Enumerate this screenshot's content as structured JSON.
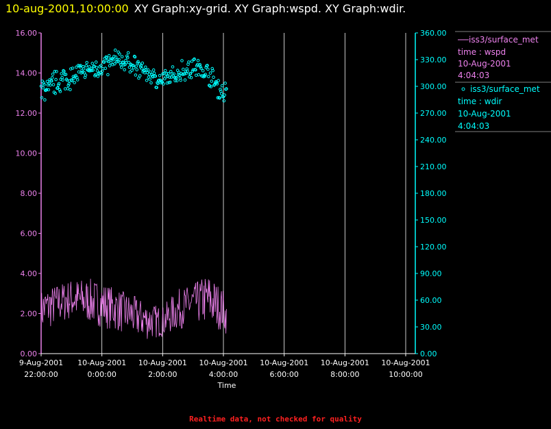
{
  "header": {
    "date": "10-aug-2001,10:00:00",
    "graphs": "XY Graph:xy-grid.  XY Graph:wspd.  XY Graph:wdir."
  },
  "footer": "Realtime data, not checked for quality",
  "colors": {
    "background": "#000000",
    "wspd": "#ee82ee",
    "wdir": "#00ffff",
    "grid": "#ffffff"
  },
  "chart_data": {
    "type": "scatter",
    "xlabel": "Time",
    "x_ticks": [
      {
        "line1": "9-Aug-2001",
        "line2": "22:00:00"
      },
      {
        "line1": "10-Aug-2001",
        "line2": "0:00:00"
      },
      {
        "line1": "10-Aug-2001",
        "line2": "2:00:00"
      },
      {
        "line1": "10-Aug-2001",
        "line2": "4:00:00"
      },
      {
        "line1": "10-Aug-2001",
        "line2": "6:00:00"
      },
      {
        "line1": "10-Aug-2001",
        "line2": "8:00:00"
      },
      {
        "line1": "10-Aug-2001",
        "line2": "10:00:00"
      }
    ],
    "xlim_hours": [
      22,
      34
    ],
    "grid_vertical": true,
    "y_left": {
      "ticks": [
        "0.00",
        "2.00",
        "4.00",
        "6.00",
        "8.00",
        "10.00",
        "12.00",
        "14.00",
        "16.00"
      ],
      "ylim": [
        0,
        16
      ]
    },
    "y_right": {
      "ticks": [
        "0.00",
        "30.00",
        "60.00",
        "90.00",
        "120.00",
        "150.00",
        "180.00",
        "210.00",
        "240.00",
        "270.00",
        "300.00",
        "330.00",
        "360.00"
      ],
      "ylim": [
        0,
        360
      ]
    },
    "legend": {
      "placement": "right",
      "entries": [
        {
          "line1": "iss3/surface_met",
          "line2": "time : wspd",
          "line3": "10-Aug-2001",
          "line4": "4:04:03",
          "marker": "line"
        },
        {
          "line1": "iss3/surface_met",
          "line2": "time : wdir",
          "line3": "10-Aug-2001",
          "line4": "4:04:03",
          "marker": "circle"
        }
      ]
    },
    "series": [
      {
        "key": "wspd",
        "axis": "left",
        "style": "line",
        "x_hours": [
          22.0,
          22.5,
          23.0,
          23.5,
          24.0,
          24.5,
          25.0,
          25.5,
          26.0,
          26.5,
          27.0,
          27.5,
          28.0,
          28.1
        ],
        "values": [
          2.3,
          2.6,
          2.8,
          2.6,
          2.5,
          2.3,
          2.0,
          1.7,
          1.6,
          2.2,
          2.6,
          2.7,
          2.2,
          1.8
        ],
        "range_low": [
          0.7,
          1.2,
          1.5,
          1.4,
          1.1,
          0.9,
          0.6,
          0.5,
          0.7,
          1.0,
          1.3,
          1.2,
          0.9,
          0.8
        ],
        "range_high": [
          3.3,
          3.6,
          3.9,
          4.0,
          3.8,
          3.4,
          3.1,
          2.7,
          2.5,
          3.4,
          3.6,
          4.3,
          3.4,
          2.6
        ]
      },
      {
        "key": "wdir",
        "axis": "right",
        "style": "points",
        "x_hours": [
          22.0,
          22.5,
          23.0,
          23.5,
          24.0,
          24.5,
          25.0,
          25.5,
          26.0,
          26.5,
          27.0,
          27.5,
          28.0,
          28.1
        ],
        "values": [
          295,
          305,
          310,
          318,
          322,
          330,
          325,
          315,
          305,
          315,
          322,
          315,
          290,
          300
        ],
        "spread": [
          15,
          14,
          14,
          12,
          14,
          14,
          14,
          12,
          12,
          14,
          14,
          14,
          12,
          18
        ]
      }
    ]
  }
}
